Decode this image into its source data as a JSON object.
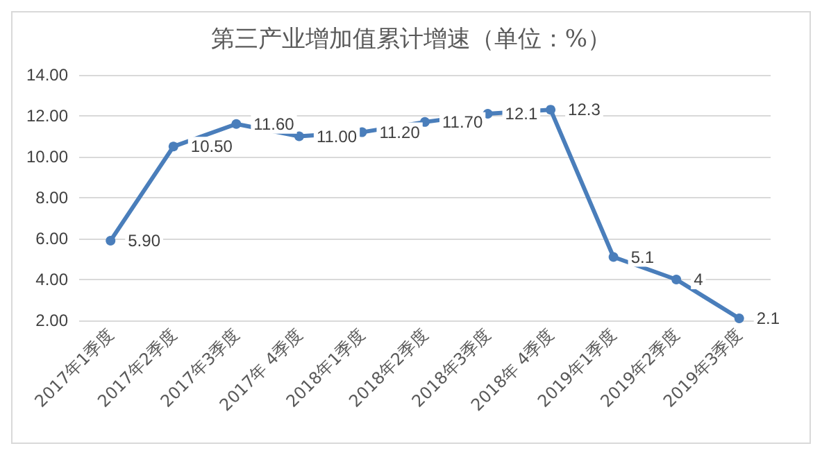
{
  "chart_data": {
    "type": "line",
    "title": "第三产业增加值累计增速（单位：%）",
    "categories": [
      "2017年1季度",
      "2017年2季度",
      "2017年3季度",
      "2017年 4季度",
      "2018年1季度",
      "2018年2季度",
      "2018年3季度",
      "2018年 4季度",
      "2019年1季度",
      "2019年2季度",
      "2019年3季度"
    ],
    "series": [
      {
        "color": "#4a7ebb",
        "values": [
          5.9,
          10.5,
          11.6,
          11.0,
          11.2,
          11.7,
          12.1,
          12.3,
          5.1,
          4,
          2.1
        ],
        "value_labels": [
          "5.90",
          "10.50",
          "11.60",
          "11.00",
          "11.20",
          "11.70",
          "12.1",
          "12.3",
          "5.1",
          "4",
          "2.1"
        ]
      }
    ],
    "ylim": [
      2,
      14
    ],
    "yticks": [
      {
        "value": 2,
        "label": "2.00"
      },
      {
        "value": 4,
        "label": "4.00"
      },
      {
        "value": 6,
        "label": "6.00"
      },
      {
        "value": 8,
        "label": "8.00"
      },
      {
        "value": 10,
        "label": "10.00"
      },
      {
        "value": 12,
        "label": "12.00"
      },
      {
        "value": 14,
        "label": "14.00"
      }
    ],
    "grid": "y",
    "marker": "circle",
    "line_style": "solid"
  }
}
